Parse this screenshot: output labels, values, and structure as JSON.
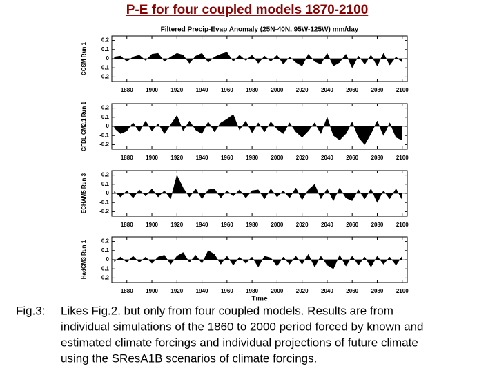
{
  "title": "P-E for four coupled models 1870-2100",
  "caption": {
    "label": "Fig.3:",
    "lines": [
      "Likes Fig.2. but only from four coupled models. Results are from",
      "individual simulations of the 1860 to 2000 period forced by known and",
      "estimated climate forcings and individual projections of future climate",
      "using the SResA1B scenarios of climate forcings."
    ]
  },
  "chart_data": [
    {
      "type": "area",
      "subtitle": "Filtered Precip-Evap Anomaly (25N-40N, 95W-125W) mm/day",
      "ylabel": "CCSM Run 1",
      "color": "#000000",
      "x": [
        1870,
        1875,
        1880,
        1885,
        1890,
        1895,
        1900,
        1905,
        1910,
        1915,
        1920,
        1925,
        1930,
        1935,
        1940,
        1945,
        1950,
        1955,
        1960,
        1965,
        1970,
        1975,
        1980,
        1985,
        1990,
        1995,
        2000,
        2005,
        2010,
        2015,
        2020,
        2025,
        2030,
        2035,
        2040,
        2045,
        2050,
        2055,
        2060,
        2065,
        2070,
        2075,
        2080,
        2085,
        2090,
        2095,
        2100
      ],
      "values": [
        0.02,
        0.03,
        -0.03,
        0.02,
        0.04,
        -0.02,
        0.05,
        0.06,
        -0.03,
        0.02,
        0.06,
        0.04,
        -0.05,
        0.03,
        0.06,
        -0.04,
        0.02,
        0.05,
        0.07,
        -0.03,
        0.04,
        -0.02,
        0.04,
        -0.05,
        0.03,
        -0.03,
        0.04,
        -0.06,
        0.02,
        -0.04,
        -0.08,
        0.05,
        -0.03,
        -0.06,
        0.06,
        -0.08,
        -0.04,
        0.05,
        -0.1,
        0.03,
        -0.06,
        0.04,
        -0.08,
        0.06,
        -0.07,
        0.02,
        -0.04
      ],
      "xlim": [
        1868,
        2104
      ],
      "ylim": [
        -0.25,
        0.25
      ],
      "xticks": [
        1880,
        1900,
        1920,
        1940,
        1960,
        1980,
        2000,
        2020,
        2040,
        2060,
        2080,
        2100
      ],
      "yticks": [
        0.2,
        0.1,
        0,
        -0.1,
        -0.2
      ]
    },
    {
      "type": "area",
      "ylabel": "GFDL CM2.1 Run 1",
      "color": "#000000",
      "x": [
        1870,
        1875,
        1880,
        1885,
        1890,
        1895,
        1900,
        1905,
        1910,
        1915,
        1920,
        1925,
        1930,
        1935,
        1940,
        1945,
        1950,
        1955,
        1960,
        1965,
        1970,
        1975,
        1980,
        1985,
        1990,
        1995,
        2000,
        2005,
        2010,
        2015,
        2020,
        2025,
        2030,
        2035,
        2040,
        2045,
        2050,
        2055,
        2060,
        2065,
        2070,
        2075,
        2080,
        2085,
        2090,
        2095,
        2100
      ],
      "values": [
        -0.02,
        -0.08,
        -0.05,
        0.04,
        -0.06,
        0.06,
        -0.05,
        0.03,
        -0.08,
        0.02,
        0.12,
        -0.05,
        0.06,
        -0.04,
        -0.08,
        0.05,
        -0.06,
        0.04,
        0.08,
        0.13,
        -0.04,
        0.06,
        -0.07,
        0.04,
        -0.06,
        0.05,
        -0.03,
        -0.08,
        0.04,
        -0.06,
        -0.12,
        -0.05,
        0.04,
        -0.08,
        0.1,
        -0.1,
        -0.15,
        -0.08,
        0.05,
        -0.12,
        -0.2,
        -0.08,
        0.06,
        -0.1,
        0.04,
        -0.12,
        -0.15
      ],
      "xlim": [
        1868,
        2104
      ],
      "ylim": [
        -0.25,
        0.25
      ],
      "xticks": [
        1880,
        1900,
        1920,
        1940,
        1960,
        1980,
        2000,
        2020,
        2040,
        2060,
        2080,
        2100
      ],
      "yticks": [
        0.2,
        0.1,
        0,
        -0.1,
        -0.2
      ]
    },
    {
      "type": "area",
      "ylabel": "ECHAM5 Run 3",
      "color": "#000000",
      "x": [
        1870,
        1875,
        1880,
        1885,
        1890,
        1895,
        1900,
        1905,
        1910,
        1915,
        1920,
        1925,
        1930,
        1935,
        1940,
        1945,
        1950,
        1955,
        1960,
        1965,
        1970,
        1975,
        1980,
        1985,
        1990,
        1995,
        2000,
        2005,
        2010,
        2015,
        2020,
        2025,
        2030,
        2035,
        2040,
        2045,
        2050,
        2055,
        2060,
        2065,
        2070,
        2075,
        2080,
        2085,
        2090,
        2095,
        2100
      ],
      "values": [
        0.02,
        -0.04,
        0.03,
        -0.05,
        0.04,
        -0.03,
        0.05,
        -0.04,
        0.03,
        -0.06,
        0.2,
        0.06,
        -0.04,
        0.05,
        -0.06,
        0.04,
        0.05,
        -0.05,
        0.03,
        -0.03,
        0.04,
        -0.05,
        0.03,
        0.04,
        -0.06,
        0.05,
        -0.04,
        0.03,
        -0.05,
        0.06,
        -0.07,
        0.04,
        0.1,
        -0.06,
        0.05,
        -0.08,
        0.06,
        -0.05,
        -0.08,
        0.04,
        -0.06,
        0.05,
        -0.1,
        0.03,
        -0.06,
        0.05,
        -0.07
      ],
      "xlim": [
        1868,
        2104
      ],
      "ylim": [
        -0.25,
        0.25
      ],
      "xticks": [
        1880,
        1900,
        1920,
        1940,
        1960,
        1980,
        2000,
        2020,
        2040,
        2060,
        2080,
        2100
      ],
      "yticks": [
        0.2,
        0.1,
        0,
        -0.1,
        -0.2
      ]
    },
    {
      "type": "area",
      "ylabel": "HadCM3 Run 1",
      "xlabel": "Time",
      "color": "#000000",
      "x": [
        1870,
        1875,
        1880,
        1885,
        1890,
        1895,
        1900,
        1905,
        1910,
        1915,
        1920,
        1925,
        1930,
        1935,
        1940,
        1945,
        1950,
        1955,
        1960,
        1965,
        1970,
        1975,
        1980,
        1985,
        1990,
        1995,
        2000,
        2005,
        2010,
        2015,
        2020,
        2025,
        2030,
        2035,
        2040,
        2045,
        2050,
        2055,
        2060,
        2065,
        2070,
        2075,
        2080,
        2085,
        2090,
        2095,
        2100
      ],
      "values": [
        -0.02,
        0.03,
        -0.03,
        0.04,
        -0.03,
        0.03,
        -0.04,
        0.03,
        0.05,
        -0.05,
        0.04,
        0.08,
        -0.03,
        0.05,
        -0.04,
        0.1,
        0.06,
        -0.05,
        0.04,
        -0.06,
        0.03,
        -0.04,
        0.03,
        -0.08,
        0.04,
        0.02,
        -0.07,
        0.03,
        -0.05,
        0.04,
        -0.05,
        0.06,
        -0.08,
        0.04,
        -0.06,
        -0.1,
        0.05,
        -0.07,
        0.04,
        -0.06,
        0.03,
        -0.08,
        0.04,
        -0.05,
        0.03,
        -0.06,
        0.04
      ],
      "xlim": [
        1868,
        2104
      ],
      "ylim": [
        -0.25,
        0.25
      ],
      "xticks": [
        1880,
        1900,
        1920,
        1940,
        1960,
        1980,
        2000,
        2020,
        2040,
        2060,
        2080,
        2100
      ],
      "yticks": [
        0.2,
        0.1,
        0,
        -0.1,
        -0.2
      ]
    }
  ]
}
